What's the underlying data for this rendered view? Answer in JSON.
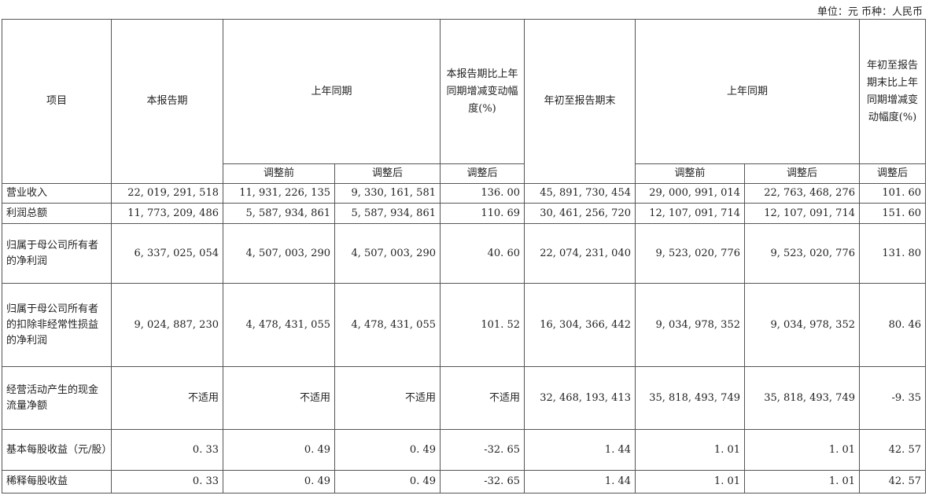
{
  "unit_label": "单位：元  币种：人民币",
  "header": {
    "item": "项目",
    "current_period": "本报告期",
    "prior_period": "上年同期",
    "change_pct": "本报告期比上年同期增减变动幅度(%)",
    "ytd": "年初至报告期末",
    "prior_ytd": "上年同期",
    "ytd_change_pct": "年初至报告期末比上年同期增减变动幅度(%)",
    "before_adj": "调整前",
    "after_adj": "调整后"
  },
  "rows": [
    {
      "item": "营业收入",
      "cur": "22, 019, 291, 518",
      "prev_before": "11, 931, 226, 135",
      "prev_after": "9, 330, 161, 581",
      "chg": "136. 00",
      "ytd": "45, 891, 730, 454",
      "ytd_prev_before": "29, 000, 991, 014",
      "ytd_prev_after": "22, 763, 468, 276",
      "ytd_chg": "101. 60"
    },
    {
      "item": "利润总额",
      "cur": "11, 773, 209, 486",
      "prev_before": "5, 587, 934, 861",
      "prev_after": "5, 587, 934, 861",
      "chg": "110. 69",
      "ytd": "30, 461, 256, 720",
      "ytd_prev_before": "12, 107, 091, 714",
      "ytd_prev_after": "12, 107, 091, 714",
      "ytd_chg": "151. 60"
    },
    {
      "item": "归属于母公司所有者的净利润",
      "cur": "6, 337, 025, 054",
      "prev_before": "4, 507, 003, 290",
      "prev_after": "4, 507, 003, 290",
      "chg": "40. 60",
      "ytd": "22, 074, 231, 040",
      "ytd_prev_before": "9, 523, 020, 776",
      "ytd_prev_after": "9, 523, 020, 776",
      "ytd_chg": "131. 80"
    },
    {
      "item": "归属于母公司所有者的扣除非经常性损益的净利润",
      "cur": "9, 024, 887, 230",
      "prev_before": "4, 478, 431, 055",
      "prev_after": "4, 478, 431, 055",
      "chg": "101. 52",
      "ytd": "16, 304, 366, 442",
      "ytd_prev_before": "9, 034, 978, 352",
      "ytd_prev_after": "9, 034, 978, 352",
      "ytd_chg": "80. 46"
    },
    {
      "item": "经营活动产生的现金流量净额",
      "cur": "不适用",
      "prev_before": "不适用",
      "prev_after": "不适用",
      "chg": "不适用",
      "ytd": "32, 468, 193, 413",
      "ytd_prev_before": "35, 818, 493, 749",
      "ytd_prev_after": "35, 818, 493, 749",
      "ytd_chg": "-9. 35"
    },
    {
      "item": "基本每股收益（元/股）",
      "cur": "0. 33",
      "prev_before": "0. 49",
      "prev_after": "0. 49",
      "chg": "-32. 65",
      "ytd": "1. 44",
      "ytd_prev_before": "1. 01",
      "ytd_prev_after": "1. 01",
      "ytd_chg": "42. 57"
    },
    {
      "item": "稀释每股收益",
      "cur": "0. 33",
      "prev_before": "0. 49",
      "prev_after": "0. 49",
      "chg": "-32. 65",
      "ytd": "1. 44",
      "ytd_prev_before": "1. 01",
      "ytd_prev_after": "1. 01",
      "ytd_chg": "42. 57"
    }
  ]
}
